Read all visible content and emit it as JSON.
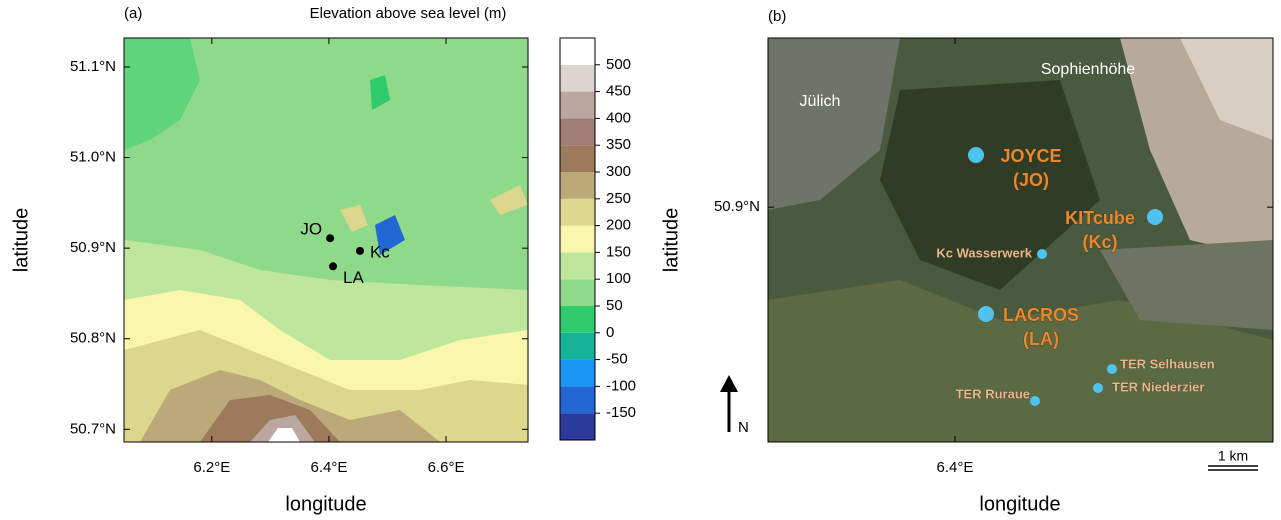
{
  "panels": [
    {
      "label": "(a)",
      "title": "Elevation above sea level (m)",
      "x_label": "longitude",
      "y_label": "latitude",
      "xlim": [
        6.05,
        6.74
      ],
      "ylim": [
        50.686,
        51.132
      ],
      "xticks": [
        {
          "value": 6.2,
          "label": "6.2°E"
        },
        {
          "value": 6.4,
          "label": "6.4°E"
        },
        {
          "value": 6.6,
          "label": "6.6°E"
        }
      ],
      "yticks": [
        {
          "value": 50.7,
          "label": "50.7°N"
        },
        {
          "value": 50.8,
          "label": "50.8°N"
        },
        {
          "value": 50.9,
          "label": "50.9°N"
        },
        {
          "value": 51.0,
          "label": "51.0°N"
        },
        {
          "value": 51.1,
          "label": "51.1°N"
        }
      ],
      "colorbar": {
        "lim": [
          -200,
          550
        ],
        "ticks": [
          500,
          450,
          400,
          350,
          300,
          250,
          200,
          150,
          100,
          50,
          0,
          -50,
          -100,
          -150
        ],
        "colors": [
          "#2b3a9b",
          "#2266d4",
          "#1a94f5",
          "#14b39a",
          "#2fcc6e",
          "#8fd98a",
          "#bfe69d",
          "#f9f7ab",
          "#ddd68d",
          "#bba978",
          "#9d7a5c",
          "#a07e76",
          "#bba79f",
          "#ddd4d0",
          "#ffffff"
        ]
      },
      "sites": [
        {
          "label": "JO",
          "lon": 6.402,
          "lat": 50.911
        },
        {
          "label": "Kc",
          "lon": 6.453,
          "lat": 50.897
        },
        {
          "label": "LA",
          "lon": 6.407,
          "lat": 50.88
        }
      ]
    },
    {
      "label": "(b)",
      "x_label": "longitude",
      "y_label": "latitude",
      "xlim": [
        6.3445,
        6.4944
      ],
      "ylim": [
        50.856,
        50.9317
      ],
      "xticks": [
        {
          "value": 6.4,
          "label": "6.4°E"
        }
      ],
      "yticks": [
        {
          "value": 50.9,
          "label": "50.9°N"
        }
      ],
      "places": [
        "Jülich",
        "Sophienhöhe"
      ],
      "sites": [
        {
          "name": "JOYCE",
          "code": "(JO)"
        },
        {
          "name": "KITcube",
          "code": "(Kc)"
        },
        {
          "name": "LACROS",
          "code": "(LA)"
        }
      ],
      "stations": [
        "Kc Wasserwerk",
        "TER Selhausen",
        "TER Niederzier",
        "TER Ruraue"
      ],
      "north": "N",
      "scale": "1 km"
    }
  ]
}
